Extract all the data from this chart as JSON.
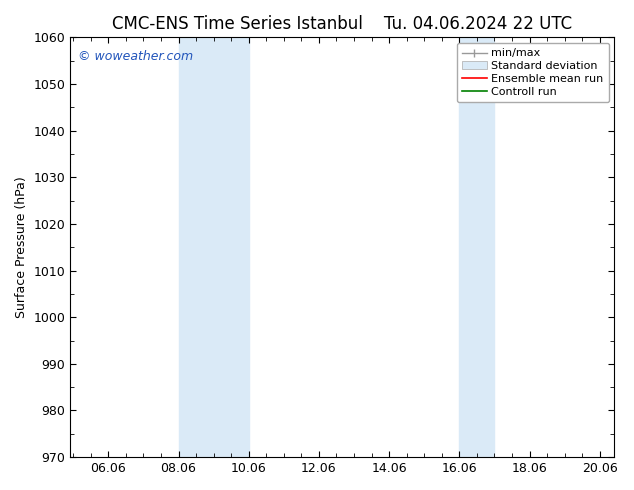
{
  "title_left": "CMC-ENS Time Series Istanbul",
  "title_right": "Tu. 04.06.2024 22 UTC",
  "ylabel": "Surface Pressure (hPa)",
  "ylim": [
    970,
    1060
  ],
  "yticks": [
    970,
    980,
    990,
    1000,
    1010,
    1020,
    1030,
    1040,
    1050,
    1060
  ],
  "xlim": [
    4.917,
    20.417
  ],
  "xtick_labels": [
    "06.06",
    "08.06",
    "10.06",
    "12.06",
    "14.06",
    "16.06",
    "18.06",
    "20.06"
  ],
  "xtick_positions": [
    6,
    8,
    10,
    12,
    14,
    16,
    18,
    20
  ],
  "shaded_bands": [
    {
      "x_start": 8.0,
      "x_end": 10.0
    },
    {
      "x_start": 16.0,
      "x_end": 17.0
    }
  ],
  "watermark_text": "© woweather.com",
  "watermark_color": "#2255bb",
  "background_color": "#ffffff",
  "plot_bg_color": "#ffffff",
  "shading_color": "#daeaf7",
  "legend_items": [
    {
      "label": "min/max",
      "color": "#aaaaaa",
      "style": "line"
    },
    {
      "label": "Standard deviation",
      "color": "#ccddee",
      "style": "fill"
    },
    {
      "label": "Ensemble mean run",
      "color": "#ff0000",
      "style": "line"
    },
    {
      "label": "Controll run",
      "color": "#008000",
      "style": "line"
    }
  ],
  "title_fontsize": 12,
  "axis_fontsize": 9,
  "tick_fontsize": 9,
  "legend_fontsize": 8
}
